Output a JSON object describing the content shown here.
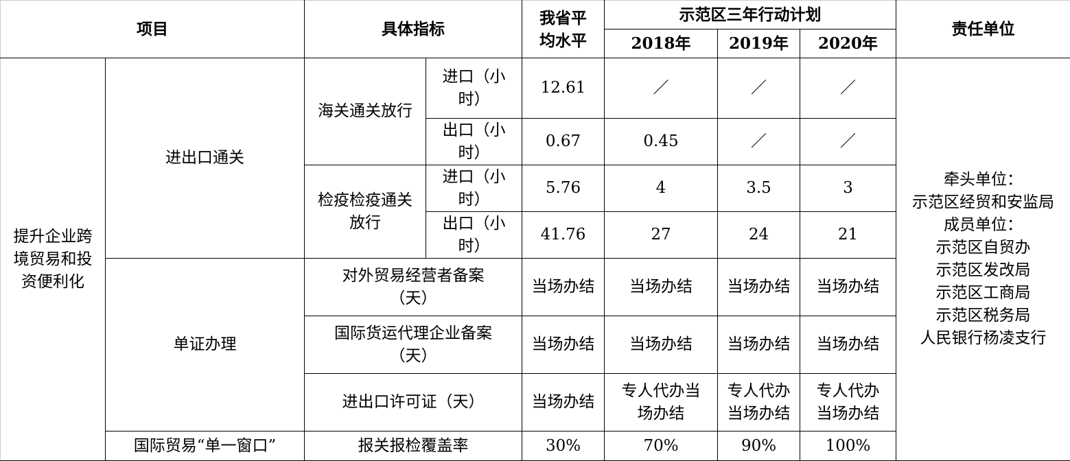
{
  "header": {
    "project": "项目",
    "indicator": "具体指标",
    "province_avg": [
      "我省平",
      "均水平"
    ],
    "plan": "示范区三年行动计划",
    "years": [
      "2018年",
      "2019年",
      "2020年"
    ],
    "responsible": "责任单位"
  },
  "group": [
    "提升企业跨",
    "境贸易和投",
    "资便利化"
  ],
  "responsible_units": [
    "牵头单位：",
    "示范区经贸和安监局",
    "成员单位：",
    "示范区自贸办",
    "示范区发改局",
    "示范区工商局",
    "示范区税务局",
    "人民银行杨凌支行"
  ],
  "sections": {
    "customs": "进出口通关",
    "customs_release": "海关通关放行",
    "quarantine_release": [
      "检疫检疫通关",
      "放行"
    ],
    "documents": "单证办理",
    "single_window": "国际贸易“单一窗口”"
  },
  "rows": [
    {
      "indicator": [
        "进口（小",
        "时）"
      ],
      "avg": "12.61",
      "y2018": [
        "／"
      ],
      "y2019": [
        "／"
      ],
      "y2020": [
        "／"
      ]
    },
    {
      "indicator": [
        "出口（小",
        "时）"
      ],
      "avg": "0.67",
      "y2018": [
        "0.45"
      ],
      "y2019": [
        "／"
      ],
      "y2020": [
        "／"
      ]
    },
    {
      "indicator": [
        "进口（小",
        "时）"
      ],
      "avg": "5.76",
      "y2018": [
        "4"
      ],
      "y2019": [
        "3.5"
      ],
      "y2020": [
        "3"
      ]
    },
    {
      "indicator": [
        "出口（小",
        "时）"
      ],
      "avg": "41.76",
      "y2018": [
        "27"
      ],
      "y2019": [
        "24"
      ],
      "y2020": [
        "21"
      ]
    },
    {
      "indicator": [
        "对外贸易经营者备案",
        "（天）"
      ],
      "avg": "当场办结",
      "y2018": [
        "当场办结"
      ],
      "y2019": [
        "当场办结"
      ],
      "y2020": [
        "当场办结"
      ]
    },
    {
      "indicator": [
        "国际货运代理企业备案",
        "（天）"
      ],
      "avg": "当场办结",
      "y2018": [
        "当场办结"
      ],
      "y2019": [
        "当场办结"
      ],
      "y2020": [
        "当场办结"
      ]
    },
    {
      "indicator": [
        "进出口许可证（天）"
      ],
      "avg": "当场办结",
      "y2018": [
        "专人代办当",
        "场办结"
      ],
      "y2019": [
        "专人代办",
        "当场办结"
      ],
      "y2020": [
        "专人代办",
        "当场办结"
      ]
    },
    {
      "indicator": [
        "报关报检覆盖率"
      ],
      "avg": "30%",
      "y2018": [
        "70%"
      ],
      "y2019": [
        "90%"
      ],
      "y2020": [
        "100%"
      ]
    }
  ]
}
